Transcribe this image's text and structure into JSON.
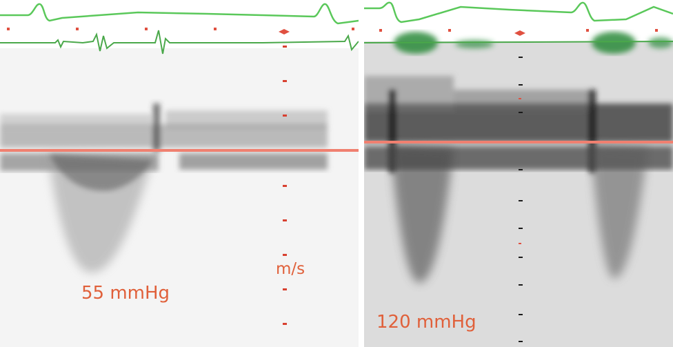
{
  "panels": {
    "left": {
      "pressure_label": "55 mmHg",
      "unit_label": "m/s"
    },
    "right": {
      "pressure_label": "120 mmHg"
    }
  },
  "colors": {
    "label": "#e0603a",
    "baseline": "#f08070",
    "ecg_trace": "#5ac85a",
    "scale_ticks_left": "#d84030",
    "scale_ticks_right": "#1a1a1a"
  }
}
